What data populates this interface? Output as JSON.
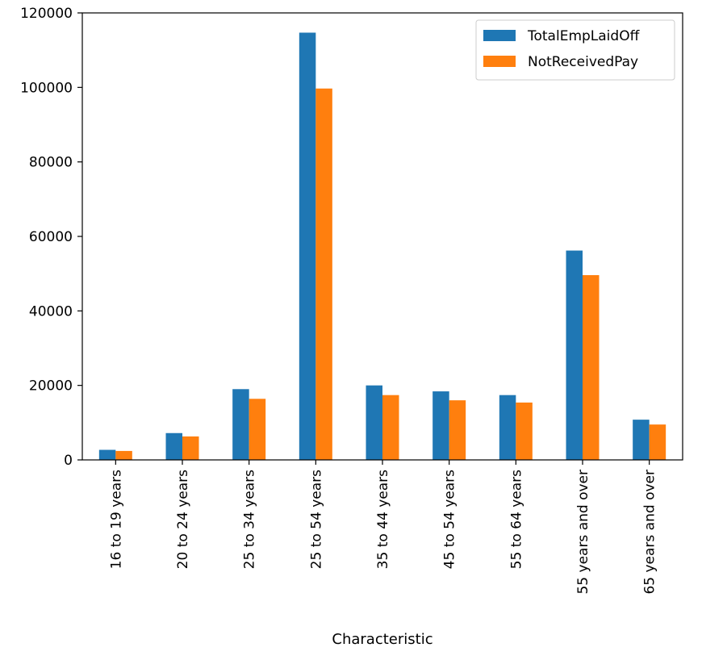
{
  "chart_data": {
    "type": "bar",
    "title": "",
    "xlabel": "Characteristic",
    "ylabel": "",
    "ylim": [
      0,
      120000
    ],
    "yticks": [
      0,
      20000,
      40000,
      60000,
      80000,
      100000,
      120000
    ],
    "ytick_labels": [
      "0",
      "20000",
      "40000",
      "60000",
      "80000",
      "100000",
      "120000"
    ],
    "grid": false,
    "legend_position": "top-right",
    "categories": [
      "16 to 19 years",
      "20 to 24 years",
      "25 to 34 years",
      "25 to 54 years",
      "35 to 44 years",
      "45 to 54 years",
      "55 to 64 years",
      "55 years and over",
      "65 years and over"
    ],
    "series": [
      {
        "name": "TotalEmpLaidOff",
        "color": "#1f77b4",
        "values": [
          2700,
          7200,
          19000,
          114700,
          20000,
          18400,
          17400,
          56200,
          10800
        ]
      },
      {
        "name": "NotReceivedPay",
        "color": "#ff7f0e",
        "values": [
          2400,
          6300,
          16400,
          99700,
          17400,
          16000,
          15400,
          49600,
          9500
        ]
      }
    ]
  }
}
